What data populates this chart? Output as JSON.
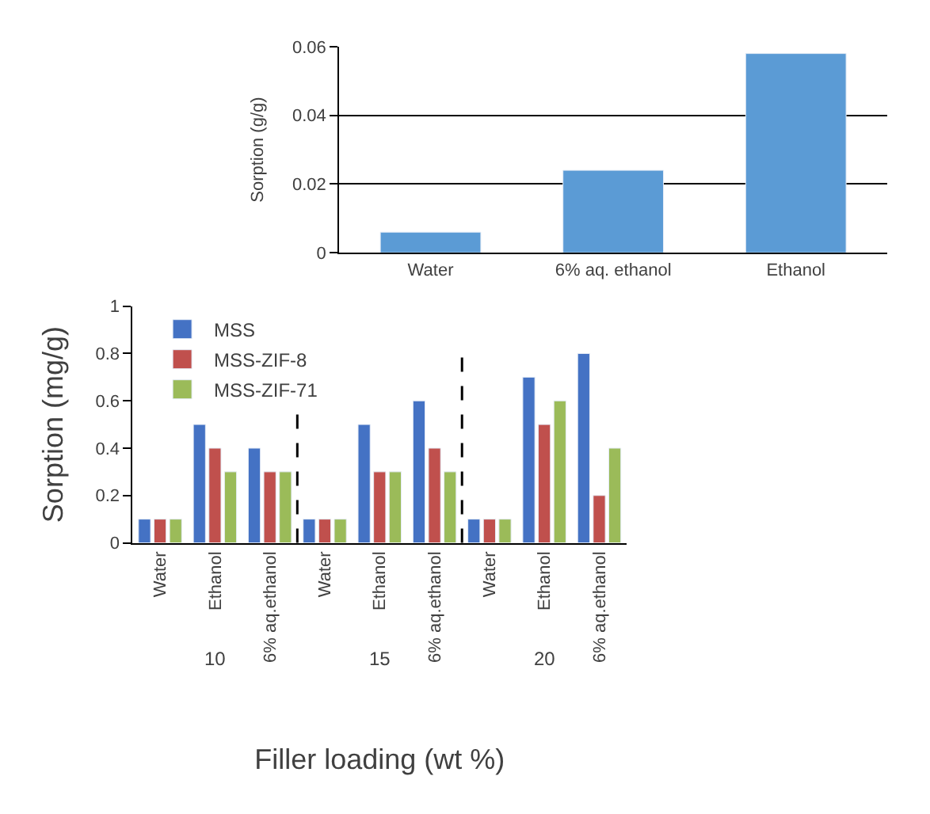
{
  "chart_data": [
    {
      "type": "bar",
      "ylabel": "Sorption (g/g)",
      "categories": [
        "Water",
        "6% aq. ethanol",
        "Ethanol"
      ],
      "values": [
        0.006,
        0.024,
        0.058
      ],
      "color": "#5b9bd5",
      "ylim": [
        0,
        0.06
      ],
      "yticks": [
        0,
        0.02,
        0.04,
        0.06
      ],
      "grid": "y"
    },
    {
      "type": "bar",
      "xlabel": "Filler loading (wt %)",
      "ylabel": "Sorption (mg/g)",
      "categories": [
        "Water",
        "Ethanol",
        "6% aq.ethanol",
        "Water",
        "Ethanol",
        "6% aq.ethanol",
        "Water",
        "Ethanol",
        "6% aq.ethanol"
      ],
      "series": [
        {
          "name": "MSS",
          "color": "#4472c4",
          "values": [
            0.1,
            0.5,
            0.4,
            0.1,
            0.5,
            0.6,
            0.1,
            0.7,
            0.8
          ]
        },
        {
          "name": "MSS-ZIF-8",
          "color": "#c0504d",
          "values": [
            0.1,
            0.4,
            0.3,
            0.1,
            0.3,
            0.4,
            0.1,
            0.5,
            0.2
          ]
        },
        {
          "name": "MSS-ZIF-71",
          "color": "#9bbb59",
          "values": [
            0.1,
            0.3,
            0.3,
            0.1,
            0.3,
            0.3,
            0.1,
            0.6,
            0.4
          ]
        }
      ],
      "annotations": [
        "10",
        "15",
        "20"
      ],
      "ylim": [
        0,
        1
      ],
      "yticks": [
        0,
        0.2,
        0.4,
        0.6,
        0.8,
        1
      ],
      "grid": false,
      "legend": "top left"
    }
  ]
}
